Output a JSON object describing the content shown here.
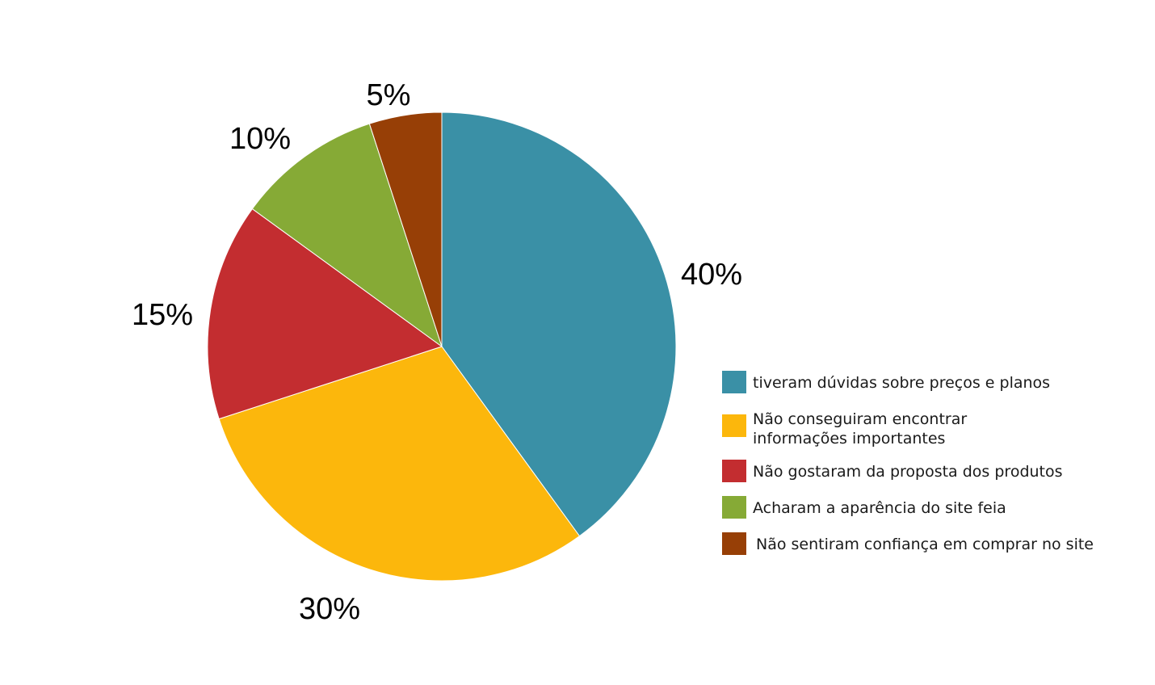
{
  "chart_data": {
    "type": "pie",
    "categories": [
      "tiveram dúvidas sobre preços e planos",
      "Não conseguiram encontrar informações importantes",
      "Não gostaram da proposta dos produtos",
      "Acharam a aparência do site feia",
      "Não sentiram confiança em comprar no site"
    ],
    "values": [
      40,
      30,
      15,
      10,
      5
    ],
    "data_labels": [
      "40%",
      "30%",
      "15%",
      "10%",
      "5%"
    ],
    "colors": [
      "#3a90a6",
      "#fcb70c",
      "#c32d30",
      "#86aa36",
      "#973f06"
    ],
    "start": "12 o'clock",
    "direction": "clockwise",
    "legend": {
      "position": "right",
      "entries": [
        {
          "lines": [
            "tiveram dúvidas sobre preços e planos"
          ]
        },
        {
          "lines": [
            "Não conseguiram encontrar",
            "informações importantes"
          ]
        },
        {
          "lines": [
            "Não gostaram da proposta dos produtos"
          ]
        },
        {
          "lines": [
            "Acharam a aparência do site feia"
          ]
        },
        {
          "lines": [
            "Não sentiram confiança em comprar no site"
          ]
        }
      ]
    }
  }
}
